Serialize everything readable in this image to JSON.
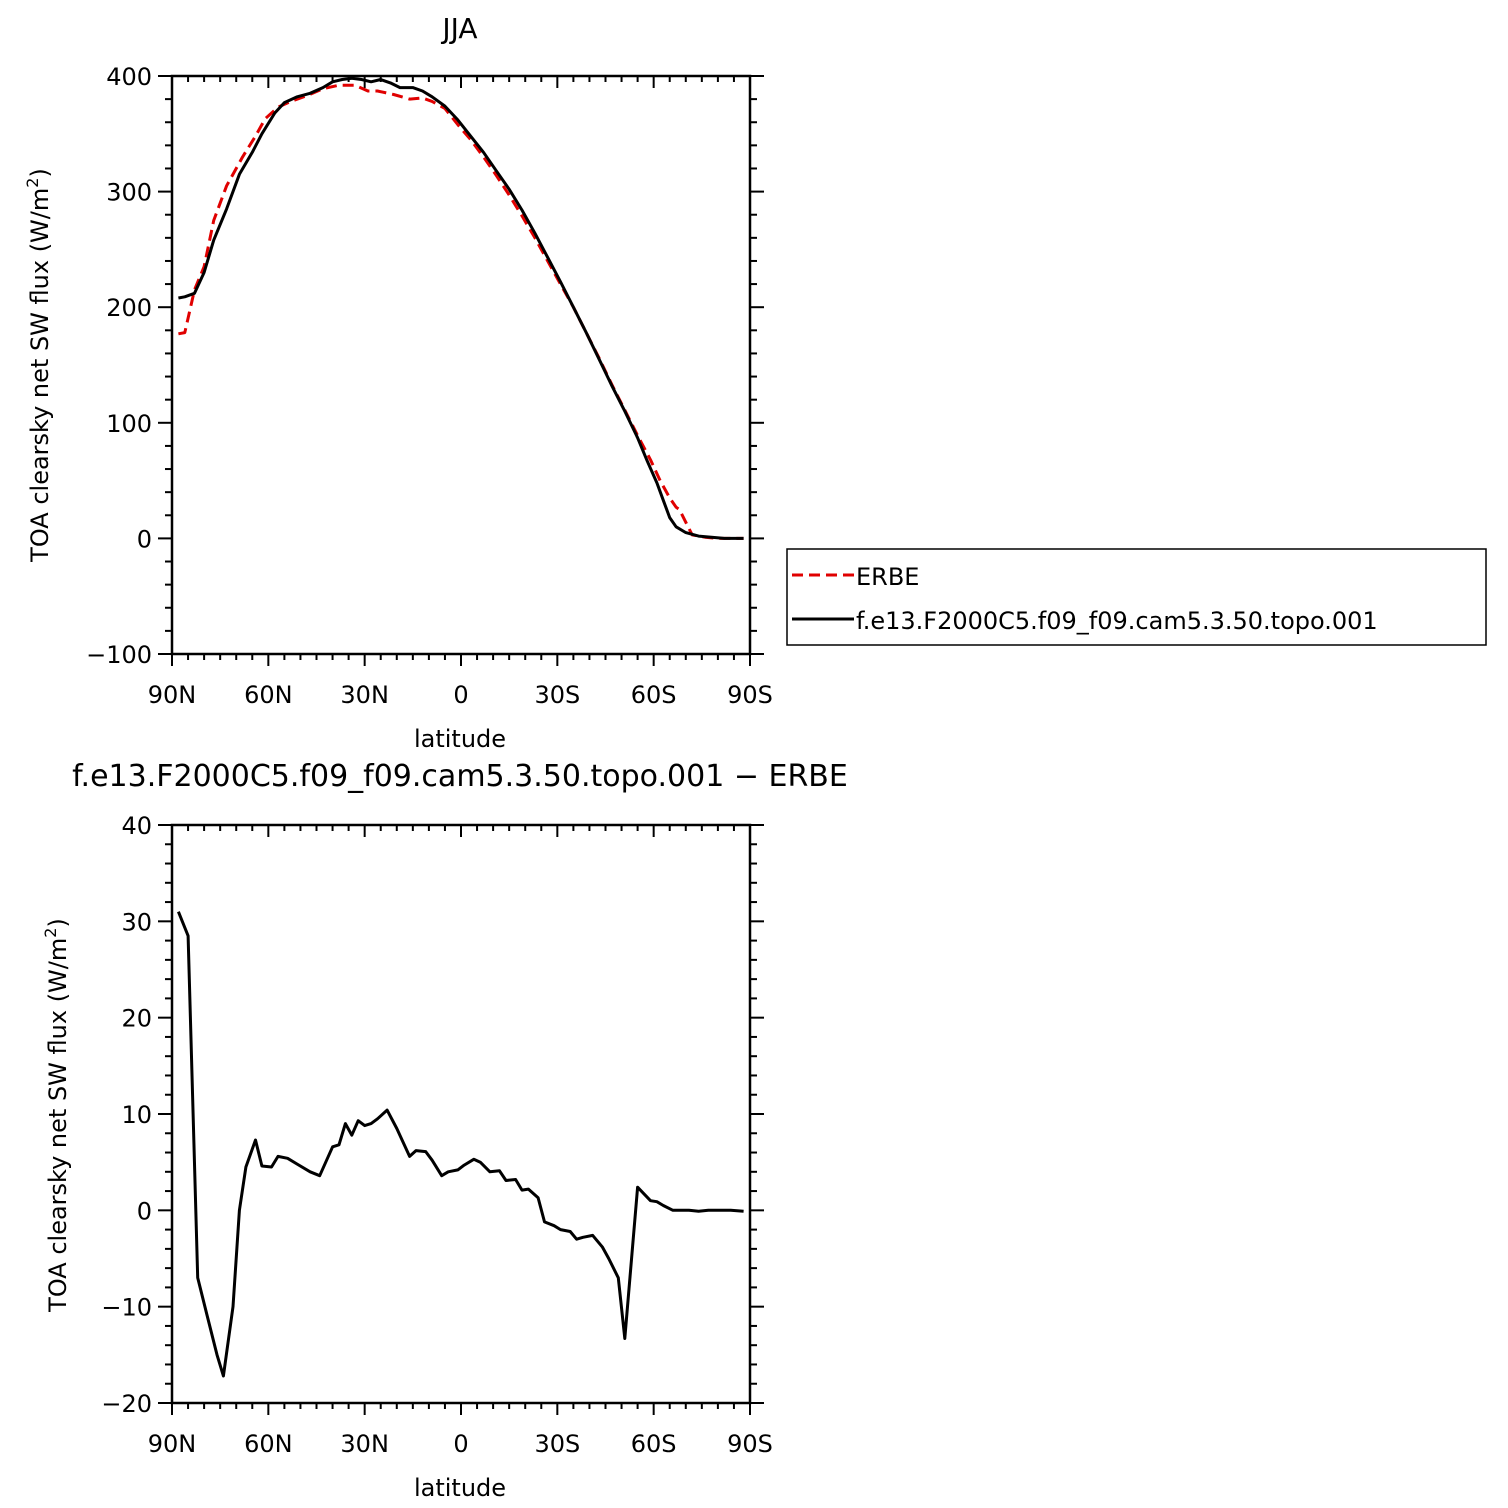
{
  "chart_data": [
    {
      "type": "line",
      "title": "JJA",
      "xlabel": "latitude",
      "ylabel": "TOA clearsky net SW flux (W/m²)",
      "ylabel_main": "TOA clearsky net SW flux (W/m",
      "ylabel_sup": "2",
      "ylabel_close": ")",
      "xlim": [
        90,
        -90
      ],
      "ylim": [
        -100,
        400
      ],
      "xticks": [
        90,
        60,
        30,
        0,
        -30,
        -60,
        -90
      ],
      "xtick_labels": [
        "90N",
        "60N",
        "30N",
        "0",
        "30S",
        "60S",
        "90S"
      ],
      "yticks": [
        -100,
        0,
        100,
        200,
        300,
        400
      ],
      "ytick_labels": [
        "−100",
        "0",
        "100",
        "200",
        "300",
        "400"
      ],
      "grid": false,
      "legend": "right",
      "series": [
        {
          "name": "ERBE",
          "color": "#e00000",
          "dash": "dashed",
          "x": [
            88,
            86,
            83,
            80,
            77,
            73,
            68,
            64,
            61,
            57,
            53,
            48,
            43,
            38,
            33,
            29,
            26,
            21,
            16,
            12,
            9,
            5,
            1,
            -3,
            -7,
            -11,
            -15,
            -19,
            -23,
            -27,
            -31,
            -35,
            -39,
            -43,
            -47,
            -51,
            -55,
            -59,
            -62,
            -65,
            -67,
            -68,
            -72,
            -76,
            -80,
            -84,
            -88
          ],
          "y": [
            177,
            178,
            215,
            235,
            275,
            305,
            330,
            348,
            363,
            373,
            378,
            383,
            389,
            392,
            392,
            387,
            387,
            384,
            380,
            381,
            378,
            372,
            358,
            345,
            330,
            314,
            297,
            279,
            260,
            240,
            220,
            200,
            178,
            156,
            133,
            111,
            89,
            68,
            50,
            35,
            27,
            25,
            3,
            1,
            0,
            0,
            0
          ]
        },
        {
          "name": "f.e13.F2000C5.f09_f09.cam5.3.50.topo.001",
          "color": "#000000",
          "dash": "solid",
          "x": [
            88,
            86,
            83,
            80,
            77,
            73,
            69,
            65,
            62,
            58,
            55,
            51,
            47,
            43,
            40,
            37,
            34,
            31,
            28,
            25,
            22,
            19,
            15,
            12,
            9,
            5,
            1,
            -3,
            -7,
            -11,
            -15,
            -19,
            -23,
            -27,
            -31,
            -35,
            -39,
            -43,
            -47,
            -51,
            -55,
            -58,
            -61,
            -63,
            -65,
            -67,
            -70,
            -74,
            -78,
            -82,
            -86,
            -88
          ],
          "y": [
            208,
            209,
            212,
            230,
            258,
            285,
            315,
            334,
            350,
            368,
            377,
            382,
            385,
            390,
            395,
            397,
            398,
            397,
            395,
            397,
            394,
            390,
            390,
            387,
            382,
            374,
            362,
            348,
            334,
            318,
            302,
            284,
            264,
            243,
            222,
            200,
            178,
            155,
            132,
            110,
            87,
            67,
            48,
            33,
            18,
            10,
            5,
            2,
            1,
            0,
            0,
            0
          ]
        }
      ]
    },
    {
      "type": "line",
      "title": "f.e13.F2000C5.f09_f09.cam5.3.50.topo.001 − ERBE",
      "xlabel": "latitude",
      "ylabel": "TOA clearsky net SW flux (W/m²)",
      "ylabel_main": "TOA clearsky net SW flux (W/m",
      "ylabel_sup": "2",
      "ylabel_close": ")",
      "xlim": [
        90,
        -90
      ],
      "ylim": [
        -20,
        40
      ],
      "xticks": [
        90,
        60,
        30,
        0,
        -30,
        -60,
        -90
      ],
      "xtick_labels": [
        "90N",
        "60N",
        "30N",
        "0",
        "30S",
        "60S",
        "90S"
      ],
      "yticks": [
        -20,
        -10,
        0,
        10,
        20,
        30,
        40
      ],
      "ytick_labels": [
        "−20",
        "−10",
        "0",
        "10",
        "20",
        "30",
        "40"
      ],
      "grid": false,
      "series": [
        {
          "color": "#000000",
          "dash": "solid",
          "x": [
            88,
            85,
            82,
            79,
            76,
            74,
            71,
            69,
            67,
            64,
            62,
            59,
            57,
            54,
            51,
            47,
            44,
            40,
            38,
            36,
            34,
            32,
            30,
            28,
            26,
            23,
            20,
            16,
            14,
            11,
            9,
            6,
            4,
            1,
            -1,
            -4,
            -6,
            -9,
            -12,
            -14,
            -17,
            -19,
            -21,
            -24,
            -26,
            -29,
            -31,
            -34,
            -36,
            -38,
            -41,
            -44,
            -46,
            -49,
            -51,
            -55,
            -59,
            -61,
            -63,
            -66,
            -68,
            -71,
            -74,
            -77,
            -80,
            -84,
            -88
          ],
          "y": [
            31,
            28.5,
            -7,
            -11,
            -15,
            -17.2,
            -10,
            0,
            4.5,
            7.3,
            4.6,
            4.5,
            5.6,
            5.4,
            4.8,
            4,
            3.6,
            6.6,
            6.8,
            9,
            7.8,
            9.3,
            8.8,
            9,
            9.5,
            10.4,
            8.5,
            5.6,
            6.2,
            6.1,
            5.2,
            3.6,
            4,
            4.2,
            4.7,
            5.3,
            5,
            4,
            4.1,
            3.1,
            3.2,
            2.1,
            2.2,
            1.3,
            -1.2,
            -1.6,
            -2,
            -2.2,
            -3,
            -2.8,
            -2.6,
            -3.8,
            -5,
            -7,
            -13.3,
            2.4,
            1,
            0.9,
            0.5,
            0,
            0,
            0,
            -0.1,
            0,
            0,
            0,
            -0.1
          ]
        }
      ]
    }
  ]
}
